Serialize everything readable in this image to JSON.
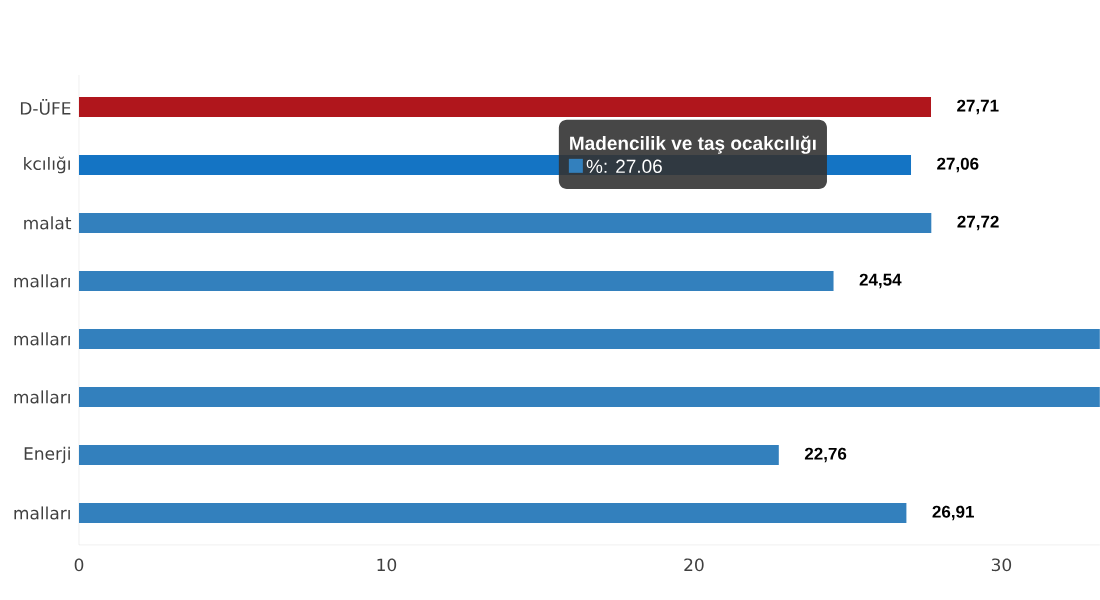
{
  "chart_data": {
    "type": "bar",
    "orientation": "horizontal",
    "categories": [
      "D-ÜFE",
      "kcılığı",
      "malat",
      "malları",
      "malları",
      "malları",
      "Enerji",
      "malları"
    ],
    "values": [
      27.71,
      27.06,
      27.72,
      24.54,
      33.2,
      33.2,
      22.76,
      26.91
    ],
    "colors": [
      "#b0161c",
      "#1474c4",
      "#3380bd",
      "#3380bd",
      "#3380bd",
      "#3380bd",
      "#3380bd",
      "#3380bd"
    ],
    "value_labels": [
      "27,71",
      "27,06",
      "27,72",
      "24,54",
      null,
      null,
      "22,76",
      "26,91"
    ],
    "xlim": [
      0,
      33.2
    ],
    "xticks": [
      0,
      10,
      20,
      30
    ],
    "annotations": [
      "Madencilik ve taş ocakcılığı",
      "%: 27.06"
    ],
    "grid": false
  }
}
